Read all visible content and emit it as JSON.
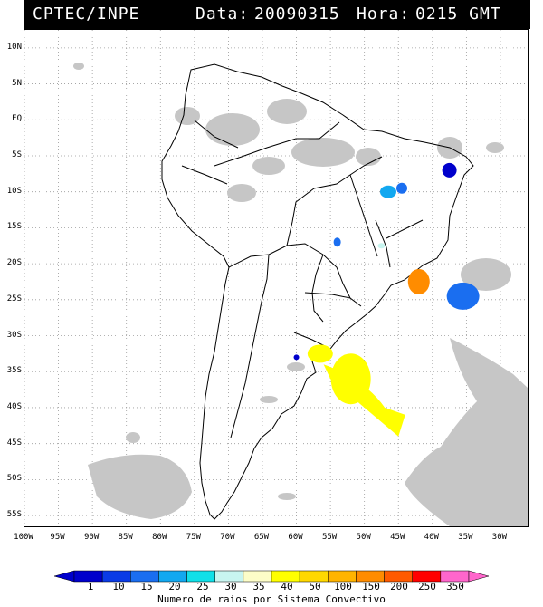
{
  "header": {
    "agency": "CPTEC/INPE",
    "data_label": "Data:",
    "date": "20090315",
    "hora_label": "Hora:",
    "time": "0215 GMT"
  },
  "lat_labels": [
    "10N",
    "5N",
    "EQ",
    "5S",
    "10S",
    "15S",
    "20S",
    "25S",
    "30S",
    "35S",
    "40S",
    "45S",
    "50S",
    "55S"
  ],
  "lat_values": [
    10,
    5,
    0,
    -5,
    -10,
    -15,
    -20,
    -25,
    -30,
    -35,
    -40,
    -45,
    -50,
    -55
  ],
  "lon_labels": [
    "100W",
    "95W",
    "90W",
    "85W",
    "80W",
    "75W",
    "70W",
    "65W",
    "60W",
    "55W",
    "50W",
    "45W",
    "40W",
    "35W",
    "30W"
  ],
  "lon_values": [
    -100,
    -95,
    -90,
    -85,
    -80,
    -75,
    -70,
    -65,
    -60,
    -55,
    -50,
    -45,
    -40,
    -35,
    -30
  ],
  "colorbar": {
    "labels": [
      "1",
      "10",
      "15",
      "20",
      "25",
      "30",
      "35",
      "40",
      "50",
      "100",
      "150",
      "200",
      "250",
      "350"
    ],
    "colors": [
      "#0000cc",
      "#0a3be6",
      "#1a6ef0",
      "#12a8f0",
      "#10e0e8",
      "#c8f5f0",
      "#fdfdc8",
      "#ffff00",
      "#ffd800",
      "#ffb400",
      "#ff8c00",
      "#ff5a00",
      "#ff0000",
      "#ff66cc"
    ],
    "title": "Numero de raios por Sistema Convectivo"
  },
  "systems": [
    {
      "lon": -37.5,
      "lat": -7.0,
      "color": "#0000cc"
    },
    {
      "lon": -46.5,
      "lat": -10.0,
      "color": "#12a8f0"
    },
    {
      "lon": -44.5,
      "lat": -9.5,
      "color": "#1a6ef0"
    },
    {
      "lon": -54.0,
      "lat": -17.0,
      "color": "#1a6ef0"
    },
    {
      "lon": -47.5,
      "lat": -17.5,
      "color": "#c8f5f0"
    },
    {
      "lon": -42.0,
      "lat": -22.5,
      "color": "#ff8c00"
    },
    {
      "lon": -35.5,
      "lat": -24.5,
      "color": "#1a6ef0"
    },
    {
      "lon": -56.5,
      "lat": -32.5,
      "color": "#ffff00"
    },
    {
      "lon": -52.0,
      "lat": -36.0,
      "color": "#ffff00"
    },
    {
      "lon": -60.0,
      "lat": -33.0,
      "color": "#0000cc"
    }
  ]
}
